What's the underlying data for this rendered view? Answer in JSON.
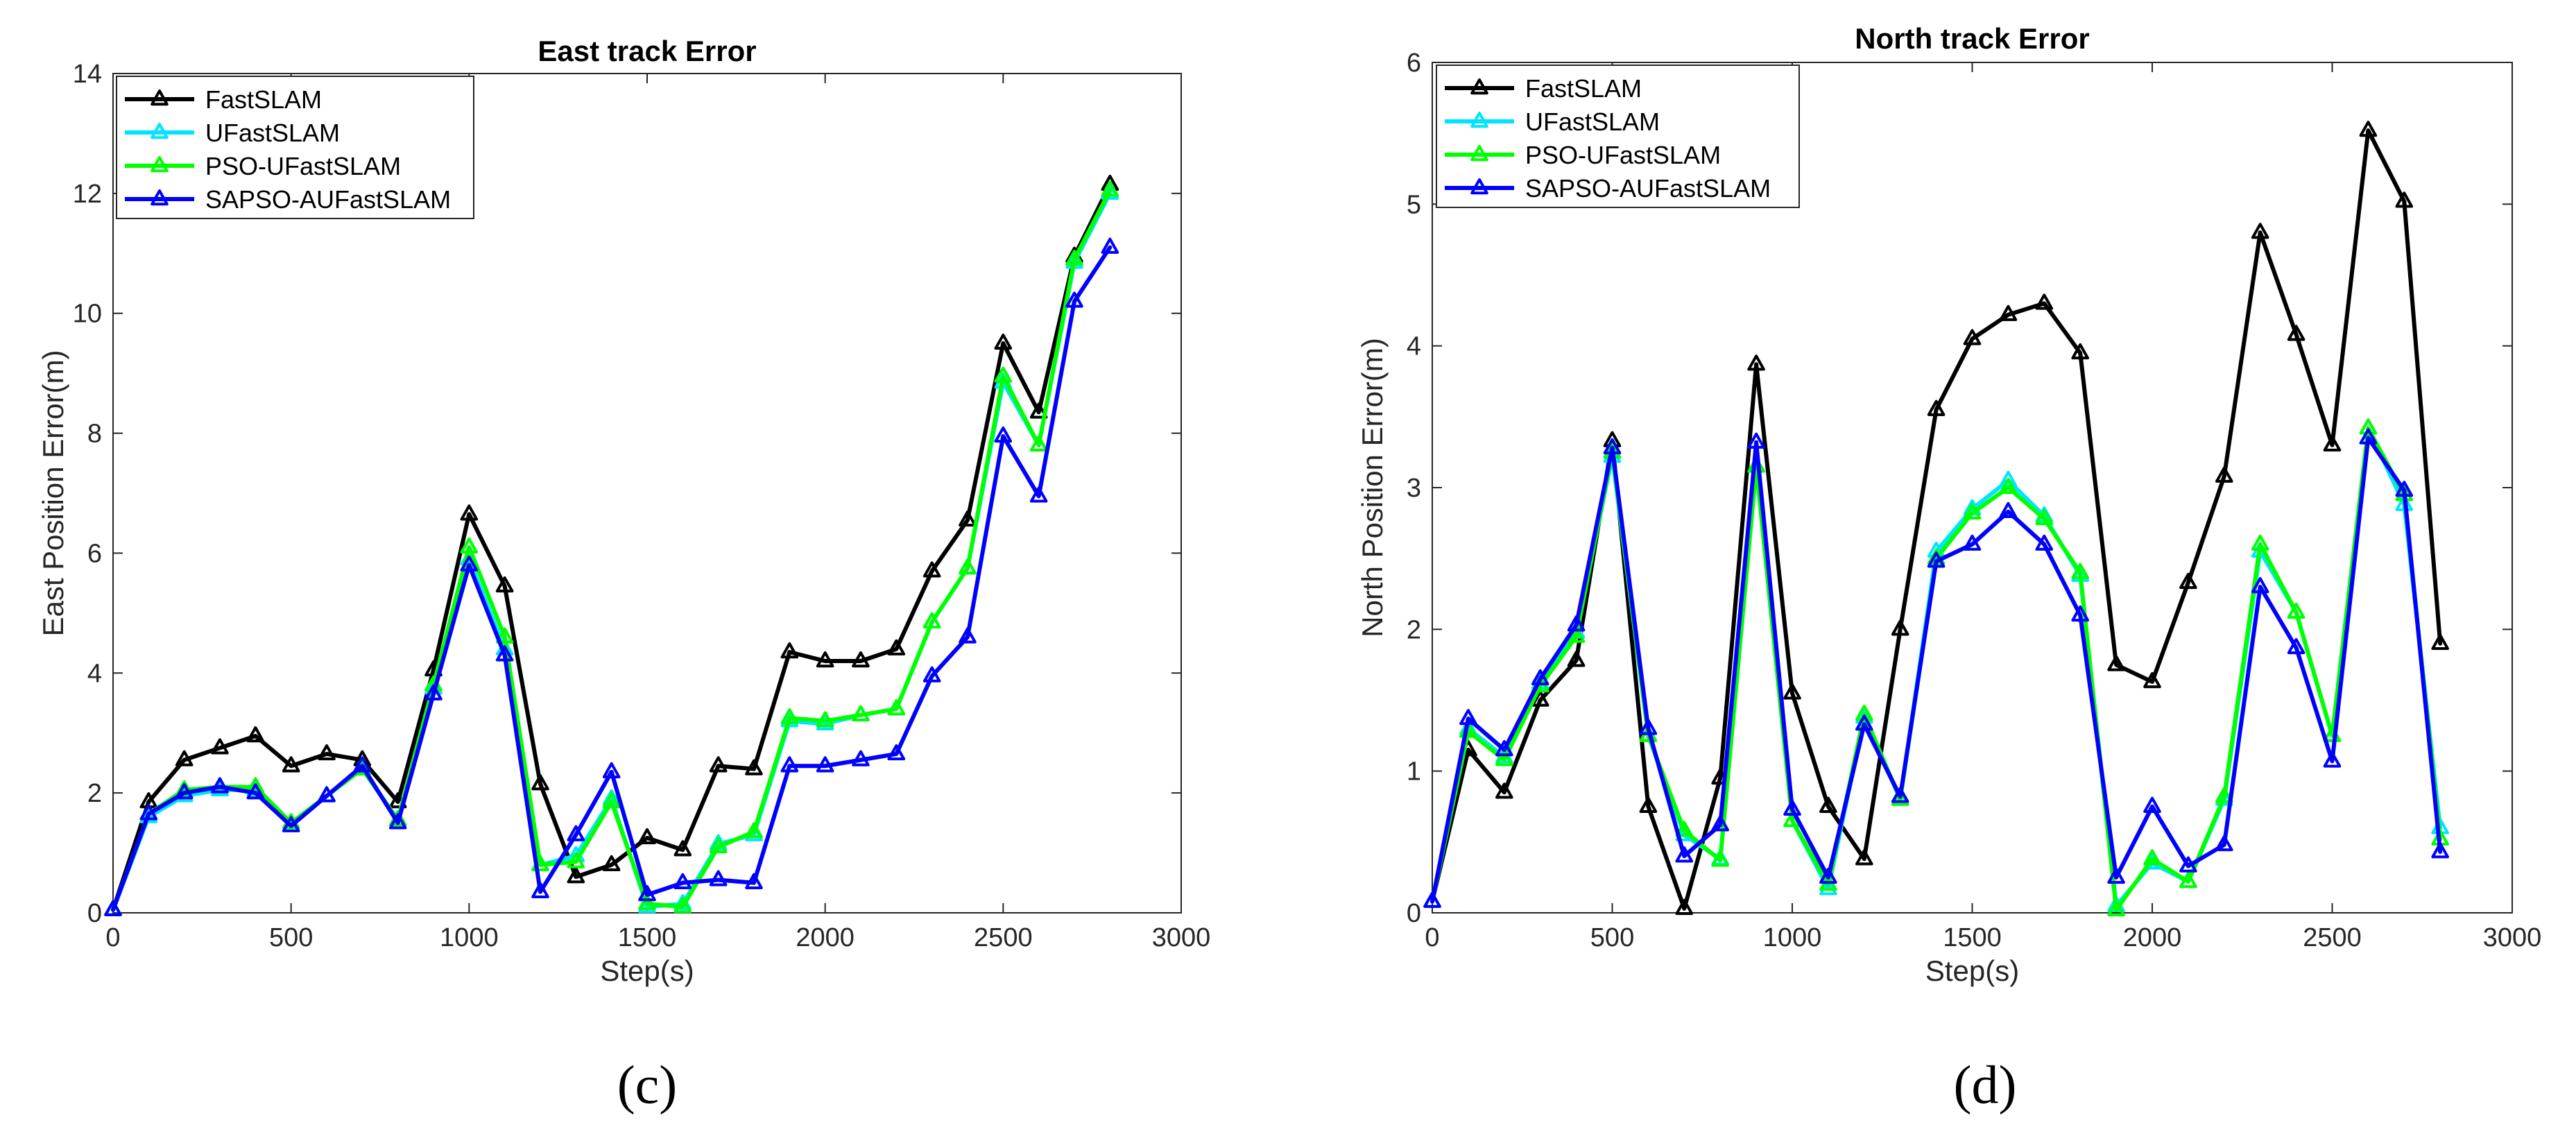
{
  "chart_data": [
    {
      "type": "line",
      "title": "East track Error",
      "xlabel": "Step(s)",
      "ylabel": "East Position Error(m)",
      "caption": "(c)",
      "xlim": [
        0,
        3000
      ],
      "ylim": [
        0,
        14
      ],
      "xticks": [
        0,
        500,
        1000,
        1500,
        2000,
        2500,
        3000
      ],
      "yticks": [
        0,
        2,
        4,
        6,
        8,
        10,
        12,
        14
      ],
      "legend_position": "top-left",
      "grid": false,
      "marker": "triangle",
      "x": [
        0,
        100,
        200,
        300,
        400,
        500,
        600,
        700,
        800,
        900,
        1000,
        1100,
        1200,
        1300,
        1400,
        1500,
        1600,
        1700,
        1800,
        1900,
        2000,
        2100,
        2200,
        2300,
        2400,
        2500,
        2600,
        2700,
        2800
      ],
      "series": [
        {
          "name": "FastSLAM",
          "color": "#000000",
          "values": [
            0.05,
            1.85,
            2.55,
            2.75,
            2.95,
            2.45,
            2.65,
            2.55,
            1.85,
            4.05,
            6.65,
            5.45,
            2.15,
            0.6,
            0.8,
            1.25,
            1.05,
            2.45,
            2.4,
            4.35,
            4.2,
            4.2,
            4.4,
            5.7,
            6.55,
            9.5,
            8.35,
            10.95,
            12.15
          ]
        },
        {
          "name": "UFastSLAM",
          "color": "#00e5ff",
          "values": [
            0.05,
            1.6,
            1.95,
            2.05,
            2.05,
            1.5,
            1.95,
            2.4,
            1.55,
            3.75,
            5.9,
            4.4,
            0.8,
            0.95,
            1.9,
            0.1,
            0.15,
            1.15,
            1.3,
            3.2,
            3.15,
            3.3,
            3.4,
            4.85,
            5.75,
            8.85,
            7.8,
            10.85,
            12.0
          ]
        },
        {
          "name": "PSO-UFastSLAM",
          "color": "#00ff00",
          "values": [
            0.05,
            1.65,
            2.05,
            2.1,
            2.1,
            1.5,
            1.95,
            2.4,
            1.55,
            3.8,
            6.1,
            4.6,
            0.8,
            0.85,
            1.85,
            0.15,
            0.1,
            1.1,
            1.35,
            3.25,
            3.2,
            3.3,
            3.4,
            4.85,
            5.75,
            8.95,
            7.8,
            10.9,
            12.05
          ]
        },
        {
          "name": "SAPSO-AUFastSLAM",
          "color": "#0000ff",
          "values": [
            0.05,
            1.65,
            2.0,
            2.1,
            2.0,
            1.45,
            1.95,
            2.45,
            1.5,
            3.65,
            5.8,
            4.3,
            0.35,
            1.3,
            2.35,
            0.3,
            0.5,
            0.55,
            0.5,
            2.45,
            2.45,
            2.55,
            2.65,
            3.95,
            4.6,
            7.95,
            6.95,
            10.2,
            11.1
          ]
        }
      ]
    },
    {
      "type": "line",
      "title": "North track Error",
      "xlabel": "Step(s)",
      "ylabel": "North Position Error(m)",
      "caption": "(d)",
      "xlim": [
        0,
        3000
      ],
      "ylim": [
        0,
        6
      ],
      "xticks": [
        0,
        500,
        1000,
        1500,
        2000,
        2500,
        3000
      ],
      "yticks": [
        0,
        1,
        2,
        3,
        4,
        5,
        6
      ],
      "legend_position": "top-left",
      "grid": false,
      "marker": "triangle",
      "x": [
        0,
        100,
        200,
        300,
        400,
        500,
        600,
        700,
        800,
        900,
        1000,
        1100,
        1200,
        1300,
        1400,
        1500,
        1600,
        1700,
        1800,
        1900,
        2000,
        2100,
        2200,
        2300,
        2400,
        2500,
        2600,
        2700,
        2800
      ],
      "series": [
        {
          "name": "FastSLAM",
          "color": "#000000",
          "values": [
            0.08,
            1.15,
            0.85,
            1.5,
            1.78,
            3.33,
            0.75,
            0.03,
            0.95,
            3.87,
            1.55,
            0.75,
            0.38,
            2.0,
            3.55,
            4.05,
            4.22,
            4.3,
            3.95,
            1.75,
            1.63,
            2.33,
            3.08,
            4.8,
            4.08,
            3.3,
            5.52,
            5.02,
            1.9
          ]
        },
        {
          "name": "UFastSLAM",
          "color": "#00e5ff",
          "values": [
            0.08,
            1.3,
            1.1,
            1.62,
            1.98,
            3.22,
            1.25,
            0.55,
            0.38,
            3.15,
            0.65,
            0.17,
            1.38,
            0.8,
            2.55,
            2.85,
            3.05,
            2.8,
            2.38,
            0.05,
            0.35,
            0.22,
            0.8,
            2.55,
            2.12,
            1.25,
            3.42,
            2.88,
            0.6
          ]
        },
        {
          "name": "PSO-UFastSLAM",
          "color": "#00ff00",
          "values": [
            0.08,
            1.28,
            1.08,
            1.6,
            1.95,
            3.25,
            1.25,
            0.58,
            0.37,
            3.15,
            0.65,
            0.2,
            1.4,
            0.8,
            2.5,
            2.82,
            3.0,
            2.78,
            2.4,
            0.02,
            0.38,
            0.22,
            0.82,
            2.6,
            2.12,
            1.25,
            3.42,
            2.95,
            0.52
          ]
        },
        {
          "name": "SAPSO-AUFastSLAM",
          "color": "#0000ff",
          "values": [
            0.08,
            1.37,
            1.15,
            1.65,
            2.03,
            3.28,
            1.3,
            0.4,
            0.62,
            3.32,
            0.73,
            0.25,
            1.33,
            0.82,
            2.48,
            2.6,
            2.83,
            2.6,
            2.1,
            0.25,
            0.75,
            0.33,
            0.48,
            2.3,
            1.87,
            1.07,
            3.35,
            2.98,
            0.43
          ]
        }
      ]
    }
  ]
}
